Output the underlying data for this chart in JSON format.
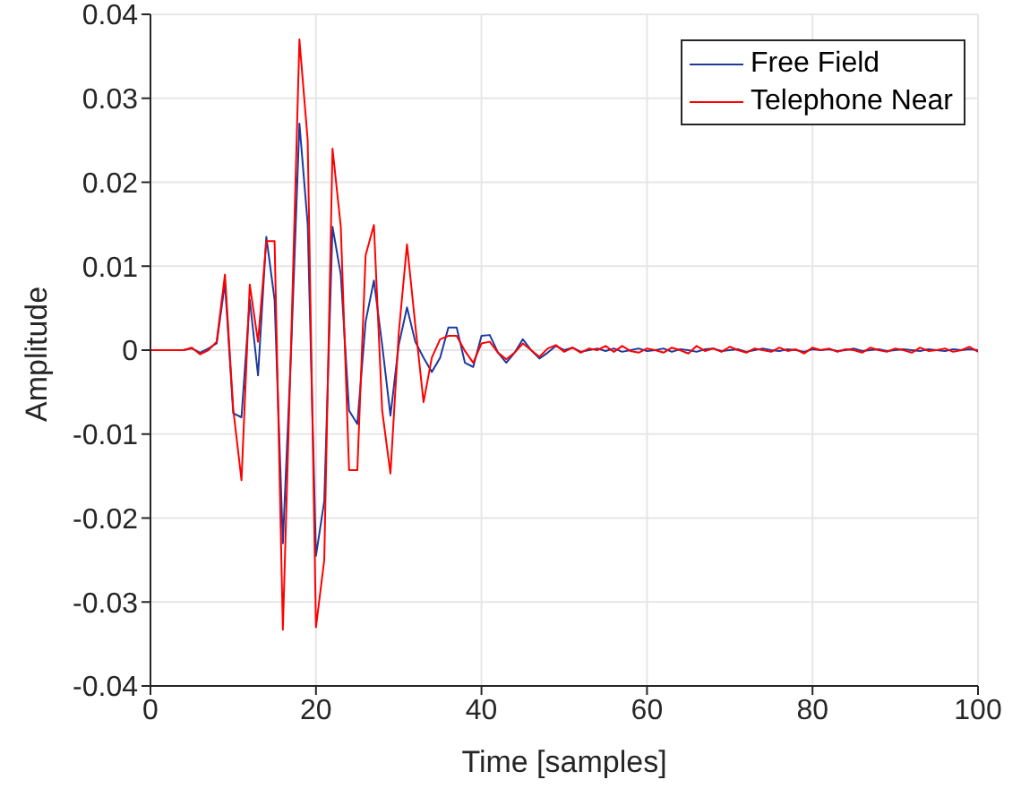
{
  "chart_data": {
    "type": "line",
    "xlabel": "Time [samples]",
    "ylabel": "Amplitude",
    "x": [
      0,
      1,
      2,
      3,
      4,
      5,
      6,
      7,
      8,
      9,
      10,
      11,
      12,
      13,
      14,
      15,
      16,
      17,
      18,
      19,
      20,
      21,
      22,
      23,
      24,
      25,
      26,
      27,
      28,
      29,
      30,
      31,
      32,
      33,
      34,
      35,
      36,
      37,
      38,
      39,
      40,
      41,
      42,
      43,
      44,
      45,
      46,
      47,
      48,
      49,
      50,
      51,
      52,
      53,
      54,
      55,
      56,
      57,
      58,
      59,
      60,
      61,
      62,
      63,
      64,
      65,
      66,
      67,
      68,
      69,
      70,
      71,
      72,
      73,
      74,
      75,
      76,
      77,
      78,
      79,
      80,
      81,
      82,
      83,
      84,
      85,
      86,
      87,
      88,
      89,
      90,
      91,
      92,
      93,
      94,
      95,
      96,
      97,
      98,
      99,
      100
    ],
    "series": [
      {
        "name": "Free Field",
        "color": "#1f3a9e",
        "values": [
          null,
          null,
          null,
          0,
          0,
          0.0002,
          -0.0003,
          0.0002,
          0.0008,
          0.008,
          -0.0075,
          -0.008,
          0.006,
          -0.003,
          0.0135,
          0.006,
          -0.023,
          0,
          0.027,
          0.015,
          -0.0245,
          -0.018,
          0.0147,
          0.009,
          -0.0072,
          -0.0088,
          0.0034,
          0.0083,
          0.0006,
          -0.0078,
          0.0006,
          0.0051,
          0.001,
          -0.0009,
          -0.0026,
          -0.0009,
          0.0027,
          0.0027,
          -0.0015,
          -0.002,
          0.0017,
          0.0018,
          -0.0003,
          -0.0015,
          -0.0003,
          0.0013,
          0,
          -0.001,
          -0.0003,
          0.0005,
          0,
          0.0003,
          -0.0002,
          0,
          0.0002,
          -0.0001,
          0.0002,
          -0.0002,
          0,
          0.0002,
          -0.0001,
          0,
          0.0002,
          -0.0002,
          0.0001,
          0,
          -0.0002,
          0.0001,
          0.0002,
          -0.0001,
          0,
          0.0001,
          -0.0002,
          0,
          0.0002,
          0,
          -0.0001,
          0.0001,
          0,
          -0.0002,
          0.0001,
          0,
          0.0001,
          -0.0001,
          0,
          0.0002,
          -0.0001,
          0,
          0.0001,
          -0.0001,
          0,
          0.0001,
          0,
          -0.0001,
          0.0001,
          0,
          -0.0001,
          0.0001,
          0,
          0.0001,
          0
        ]
      },
      {
        "name": "Telephone Near",
        "color": "#ff0000",
        "values": [
          0,
          0,
          0,
          0,
          0,
          0.0003,
          -0.0005,
          0,
          0.001,
          0.009,
          -0.007,
          -0.0155,
          0.0078,
          0.001,
          0.013,
          0.013,
          -0.0333,
          0.001,
          0.037,
          0.025,
          -0.033,
          -0.025,
          0.024,
          0.0147,
          -0.0143,
          -0.0143,
          0.0113,
          0.0149,
          -0.0072,
          -0.0147,
          0.002,
          0.0126,
          0.003,
          -0.0062,
          -0.0009,
          0.0013,
          0.0017,
          0.0017,
          -0.0001,
          -0.0015,
          0.0008,
          0.001,
          -0.0003,
          -0.0011,
          -0.0003,
          0.0008,
          0,
          -0.0008,
          0.0002,
          0.0006,
          -0.0002,
          0.0003,
          -0.0003,
          0.0002,
          0,
          0.0005,
          -0.0002,
          0.0005,
          -0.0001,
          -0.0003,
          0.0002,
          0,
          -0.0003,
          0.0003,
          0,
          -0.0004,
          0.0005,
          -0.0001,
          0.0002,
          -0.0002,
          0.0004,
          0,
          -0.0003,
          0.0002,
          0,
          -0.0002,
          0.0003,
          -0.0001,
          0.0001,
          -0.0004,
          0.0003,
          0,
          0.0002,
          -0.0002,
          0.0001,
          0,
          -0.0003,
          0.0003,
          0,
          -0.0002,
          0.0002,
          0,
          -0.0003,
          0.0003,
          -0.0001,
          0,
          0.0002,
          -0.0002,
          0,
          0.0004,
          -0.0002
        ]
      }
    ],
    "xlim": [
      0,
      100
    ],
    "xticks": [
      0,
      20,
      40,
      60,
      80,
      100
    ],
    "ylim": [
      -0.04,
      0.04
    ],
    "yticks": [
      -0.04,
      -0.03,
      -0.02,
      -0.01,
      0,
      0.01,
      0.02,
      0.03,
      0.04
    ],
    "grid": true,
    "legend": "top right",
    "line_style": "solid",
    "marker": "none"
  }
}
